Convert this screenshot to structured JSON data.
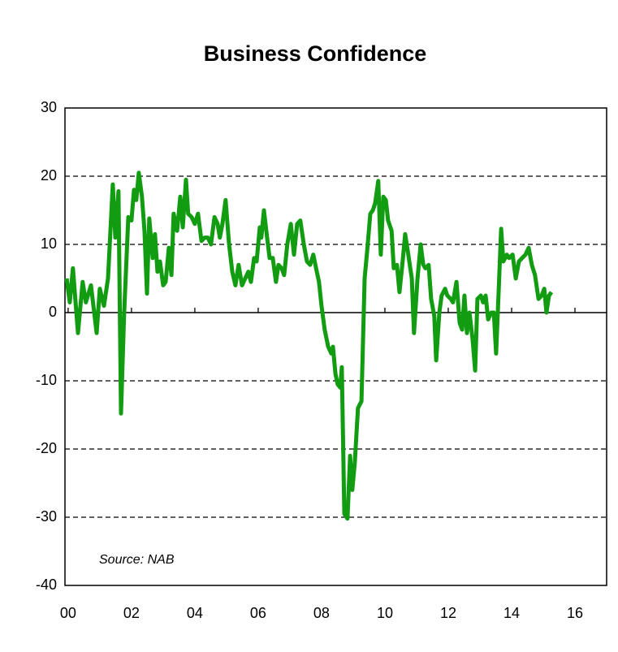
{
  "chart_data": {
    "type": "line",
    "title": "Business Confidence",
    "annotation": "Source: NAB",
    "x": [
      1999.95,
      2000.05,
      2000.15,
      2000.31,
      2000.46,
      2000.56,
      2000.72,
      2000.9,
      2001.0,
      2001.13,
      2001.26,
      2001.41,
      2001.49,
      2001.59,
      2001.67,
      2001.77,
      2001.9,
      2002.0,
      2002.08,
      2002.15,
      2002.23,
      2002.33,
      2002.41,
      2002.49,
      2002.56,
      2002.67,
      2002.74,
      2002.82,
      2002.9,
      2003.0,
      2003.08,
      2003.18,
      2003.26,
      2003.33,
      2003.44,
      2003.54,
      2003.62,
      2003.72,
      2003.79,
      2003.9,
      2004.0,
      2004.1,
      2004.21,
      2004.31,
      2004.41,
      2004.51,
      2004.62,
      2004.72,
      2004.79,
      2004.87,
      2004.97,
      2005.08,
      2005.18,
      2005.28,
      2005.38,
      2005.49,
      2005.59,
      2005.69,
      2005.77,
      2005.87,
      2005.95,
      2006.05,
      2006.1,
      2006.18,
      2006.28,
      2006.36,
      2006.46,
      2006.56,
      2006.64,
      2006.74,
      2006.82,
      2006.92,
      2007.03,
      2007.13,
      2007.23,
      2007.33,
      2007.44,
      2007.54,
      2007.64,
      2007.74,
      2007.85,
      2007.92,
      2008.0,
      2008.1,
      2008.21,
      2008.31,
      2008.36,
      2008.44,
      2008.51,
      2008.59,
      2008.64,
      2008.72,
      2008.82,
      2008.9,
      2008.97,
      2009.05,
      2009.15,
      2009.26,
      2009.36,
      2009.44,
      2009.54,
      2009.62,
      2009.69,
      2009.79,
      2009.87,
      2009.95,
      2010.03,
      2010.1,
      2010.21,
      2010.28,
      2010.38,
      2010.46,
      2010.56,
      2010.64,
      2010.74,
      2010.85,
      2010.92,
      2011.03,
      2011.13,
      2011.21,
      2011.28,
      2011.38,
      2011.46,
      2011.56,
      2011.62,
      2011.72,
      2011.79,
      2011.9,
      2011.97,
      2012.08,
      2012.15,
      2012.26,
      2012.36,
      2012.44,
      2012.51,
      2012.59,
      2012.67,
      2012.77,
      2012.85,
      2012.92,
      2013.03,
      2013.1,
      2013.18,
      2013.26,
      2013.36,
      2013.44,
      2013.51,
      2013.59,
      2013.67,
      2013.74,
      2013.85,
      2013.92,
      2014.03,
      2014.13,
      2014.23,
      2014.33,
      2014.44,
      2014.54,
      2014.64,
      2014.74,
      2014.85,
      2014.95,
      2015.03,
      2015.1,
      2015.18,
      2015.26
    ],
    "series": [
      {
        "color": "#129c12",
        "values": [
          5,
          1.5,
          6.5,
          -3,
          4.5,
          1.5,
          4,
          -3,
          3.5,
          1,
          5,
          18.8,
          11,
          17.8,
          -14.8,
          0,
          14,
          13.5,
          18,
          16.5,
          20.5,
          17,
          12,
          2.8,
          13.8,
          8,
          11.5,
          6,
          7.5,
          4,
          4.5,
          9.5,
          5.5,
          14.5,
          12,
          17,
          12.5,
          19.5,
          14.5,
          14,
          13,
          14.5,
          10.5,
          11,
          11,
          10,
          14,
          13,
          11,
          13,
          16.5,
          10,
          6,
          4,
          7,
          4,
          5,
          6,
          4.5,
          8,
          7.5,
          12.5,
          11,
          15,
          11,
          8,
          8,
          4.5,
          7,
          6.5,
          5.5,
          10,
          13,
          8.5,
          13,
          13.5,
          10,
          7.5,
          7,
          8.5,
          6,
          4.5,
          1,
          -2.5,
          -5,
          -6,
          -5,
          -9,
          -10.5,
          -11,
          -8,
          -29.5,
          -30.2,
          -21,
          -26,
          -22,
          -14,
          -13,
          5,
          9,
          14.5,
          15,
          16,
          19.3,
          8.5,
          17,
          16.5,
          13.5,
          12,
          6.5,
          7,
          3,
          7.5,
          11.5,
          8.5,
          5,
          -3,
          5,
          10,
          7,
          6.5,
          7,
          2,
          -0.5,
          -7,
          0,
          2.5,
          3.5,
          2.5,
          2,
          1.5,
          4.5,
          -1.5,
          -2.5,
          2.5,
          -3,
          0,
          -4,
          -8.5,
          2,
          2.5,
          1.5,
          2.5,
          -1,
          0,
          0,
          -6,
          3,
          12.3,
          7.5,
          8.5,
          8,
          8.5,
          5,
          7.5,
          8,
          8.5,
          9.5,
          7,
          5.5,
          2,
          2.5,
          3.5,
          0,
          2.5,
          3
        ]
      }
    ],
    "xlim": [
      1999.9,
      2017.0
    ],
    "xticks": [
      {
        "value": 2000,
        "label": "00"
      },
      {
        "value": 2002,
        "label": "02"
      },
      {
        "value": 2004,
        "label": "04"
      },
      {
        "value": 2006,
        "label": "06"
      },
      {
        "value": 2008,
        "label": "08"
      },
      {
        "value": 2010,
        "label": "10"
      },
      {
        "value": 2012,
        "label": "12"
      },
      {
        "value": 2014,
        "label": "14"
      },
      {
        "value": 2016,
        "label": "16"
      }
    ],
    "ylim": [
      -40,
      30
    ],
    "yticks": [
      -40,
      -30,
      -20,
      -10,
      0,
      10,
      20,
      30
    ],
    "grid": true
  }
}
